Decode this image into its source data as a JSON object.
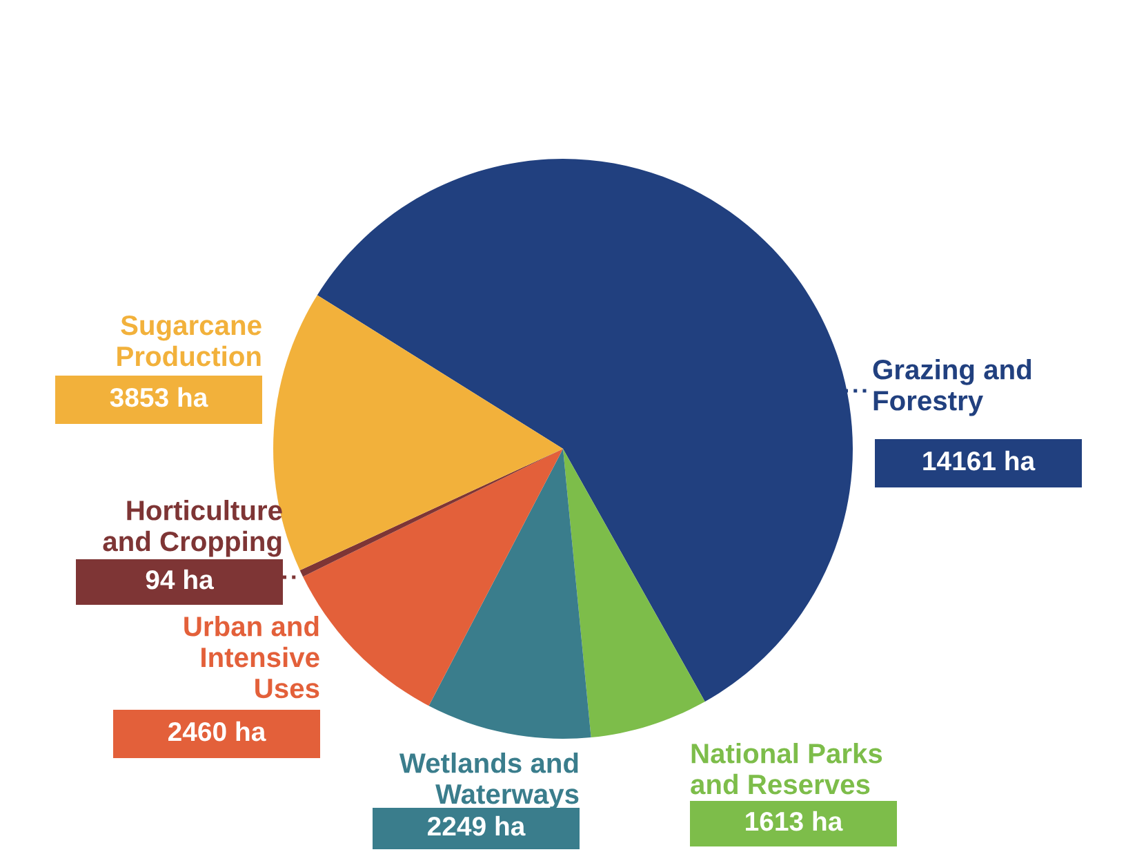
{
  "chart_data": {
    "type": "pie",
    "categories": [
      "Grazing and\nForestry",
      "National Parks\nand Reserves",
      "Wetlands and\nWaterways",
      "Urban and\nIntensive\nUses",
      "Horticulture\nand Cropping",
      "Sugarcane\nProduction"
    ],
    "values": [
      14161,
      1613,
      2249,
      2460,
      94,
      3853
    ],
    "value_labels": [
      "14161 ha",
      "1613 ha",
      "2249 ha",
      "2460 ha",
      "94 ha",
      "3853 ha"
    ],
    "colors": [
      "#21407f",
      "#7dbd4a",
      "#3a7d8c",
      "#e3603a",
      "#7e3535",
      "#f2b13b"
    ]
  }
}
